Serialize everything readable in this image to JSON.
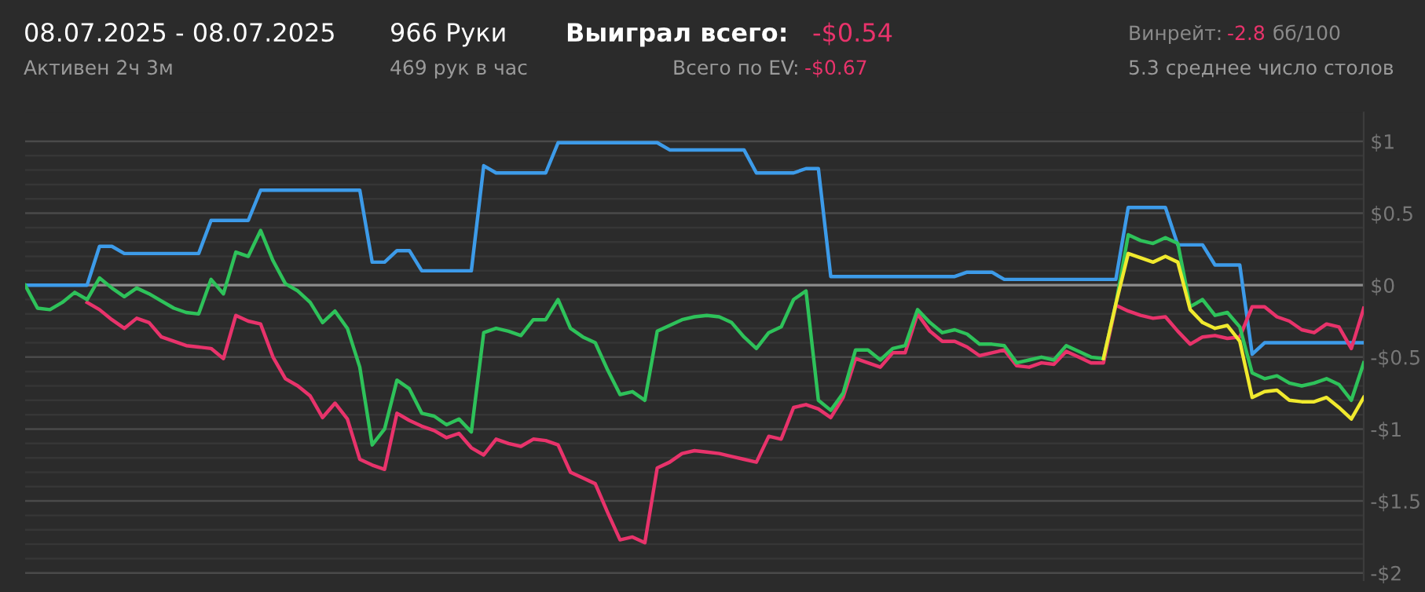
{
  "chart_data": {
    "type": "line",
    "annotations": [
      "08.07.2025 - 08.07.2025",
      "Активен 2ч 3м",
      "966 Руки",
      "469 рук в час",
      "Выиграл всего:",
      "-$0.54",
      "Всего по EV:",
      "-$0.67",
      "Винрейт:",
      "-2.8",
      "бб/100",
      "5.3 среднее число столов"
    ],
    "categories": [
      null,
      null,
      null,
      null,
      null,
      null,
      null,
      null,
      null,
      null,
      null,
      null,
      null,
      null,
      null,
      null,
      null,
      null,
      null,
      null,
      null,
      null,
      null,
      null,
      null,
      null,
      null,
      null,
      null,
      null,
      null,
      null,
      null,
      null,
      null,
      null,
      null,
      null,
      null,
      null,
      null,
      null,
      null,
      null,
      null,
      null,
      null,
      null,
      null,
      null,
      null,
      null,
      null,
      null,
      null,
      null,
      null,
      null,
      null,
      null,
      null,
      null,
      null,
      null,
      null,
      null,
      null,
      null,
      null,
      null,
      null,
      null,
      null,
      null,
      null,
      null,
      null,
      null,
      null,
      null,
      null,
      null,
      null,
      null,
      null,
      null,
      null,
      null,
      null,
      null,
      null,
      null,
      null,
      null,
      null,
      null,
      null,
      null,
      null,
      null,
      null,
      null,
      null,
      null,
      null,
      null,
      null,
      null,
      null
    ],
    "series": [
      {
        "color": "#3d9be9",
        "values": [
          0,
          0,
          0,
          0,
          0,
          0,
          0.27,
          0.27,
          0.22,
          0.22,
          0.22,
          0.22,
          0.22,
          0.22,
          0.22,
          0.45,
          0.45,
          0.45,
          0.45,
          0.66,
          0.66,
          0.66,
          0.66,
          0.66,
          0.66,
          0.66,
          0.66,
          0.66,
          0.16,
          0.16,
          0.24,
          0.24,
          0.1,
          0.1,
          0.1,
          0.1,
          0.1,
          0.83,
          0.78,
          0.78,
          0.78,
          0.78,
          0.78,
          0.99,
          0.99,
          0.99,
          0.99,
          0.99,
          0.99,
          0.99,
          0.99,
          0.99,
          0.94,
          0.94,
          0.94,
          0.94,
          0.94,
          0.94,
          0.94,
          0.78,
          0.78,
          0.78,
          0.78,
          0.81,
          0.81,
          0.06,
          0.06,
          0.06,
          0.06,
          0.06,
          0.06,
          0.06,
          0.06,
          0.06,
          0.06,
          0.06,
          0.09,
          0.09,
          0.09,
          0.04,
          0.04,
          0.04,
          0.04,
          0.04,
          0.04,
          0.04,
          0.04,
          0.04,
          0.04,
          0.54,
          0.54,
          0.54,
          0.54,
          0.28,
          0.28,
          0.28,
          0.14,
          0.14,
          0.14,
          -0.48,
          -0.4,
          -0.4,
          -0.4,
          -0.4,
          -0.4,
          -0.4,
          -0.4,
          -0.4,
          -0.4
        ]
      },
      {
        "color": "#e8336b",
        "values": [
          null,
          null,
          null,
          null,
          null,
          -0.12,
          -0.17,
          -0.24,
          -0.3,
          -0.23,
          -0.26,
          -0.36,
          -0.39,
          -0.42,
          -0.43,
          -0.44,
          -0.51,
          -0.21,
          -0.25,
          -0.27,
          -0.5,
          -0.65,
          -0.7,
          -0.77,
          -0.92,
          -0.82,
          -0.93,
          -1.21,
          -1.25,
          -1.28,
          -0.89,
          -0.94,
          -0.98,
          -1.01,
          -1.06,
          -1.03,
          -1.13,
          -1.18,
          -1.07,
          -1.1,
          -1.12,
          -1.07,
          -1.08,
          -1.11,
          -1.3,
          -1.34,
          -1.38,
          -1.58,
          -1.77,
          -1.75,
          -1.79,
          -1.27,
          -1.23,
          -1.17,
          -1.15,
          -1.16,
          -1.17,
          -1.19,
          -1.21,
          -1.23,
          -1.05,
          -1.07,
          -0.85,
          -0.83,
          -0.86,
          -0.92,
          -0.78,
          -0.51,
          -0.54,
          -0.57,
          -0.47,
          -0.47,
          -0.2,
          -0.32,
          -0.39,
          -0.39,
          -0.43,
          -0.49,
          -0.47,
          -0.45,
          -0.56,
          -0.57,
          -0.54,
          -0.55,
          -0.46,
          -0.5,
          -0.54,
          -0.54,
          -0.14,
          -0.18,
          -0.21,
          -0.23,
          -0.22,
          -0.32,
          -0.41,
          -0.36,
          -0.35,
          -0.37,
          -0.36,
          -0.15,
          -0.15,
          -0.22,
          -0.25,
          -0.31,
          -0.33,
          -0.27,
          -0.29,
          -0.44,
          -0.16
        ]
      },
      {
        "color": "#2ec25a",
        "values": [
          0,
          -0.16,
          -0.17,
          -0.12,
          -0.05,
          -0.1,
          0.05,
          -0.02,
          -0.08,
          -0.02,
          -0.06,
          -0.11,
          -0.16,
          -0.19,
          -0.2,
          0.04,
          -0.06,
          0.23,
          0.2,
          0.38,
          0.17,
          0.01,
          -0.04,
          -0.12,
          -0.26,
          -0.18,
          -0.3,
          -0.57,
          -1.11,
          -1.0,
          -0.66,
          -0.72,
          -0.89,
          -0.91,
          -0.97,
          -0.93,
          -1.02,
          -0.33,
          -0.3,
          -0.32,
          -0.35,
          -0.24,
          -0.24,
          -0.1,
          -0.3,
          -0.36,
          -0.4,
          -0.59,
          -0.76,
          -0.74,
          -0.8,
          -0.32,
          -0.28,
          -0.24,
          -0.22,
          -0.21,
          -0.22,
          -0.26,
          -0.36,
          -0.44,
          -0.33,
          -0.29,
          -0.1,
          -0.04,
          -0.8,
          -0.87,
          -0.75,
          -0.45,
          -0.45,
          -0.52,
          -0.44,
          -0.42,
          -0.17,
          -0.26,
          -0.33,
          -0.31,
          -0.34,
          -0.41,
          -0.41,
          -0.42,
          -0.54,
          -0.52,
          -0.5,
          -0.52,
          -0.42,
          -0.46,
          -0.5,
          -0.51,
          -0.13,
          0.35,
          0.31,
          0.29,
          0.33,
          0.29,
          -0.15,
          -0.1,
          -0.21,
          -0.19,
          -0.29,
          -0.61,
          -0.65,
          -0.63,
          -0.68,
          -0.7,
          -0.68,
          -0.65,
          -0.69,
          -0.8,
          -0.54
        ]
      },
      {
        "color": "#f0e92e",
        "values": [
          null,
          null,
          null,
          null,
          null,
          null,
          null,
          null,
          null,
          null,
          null,
          null,
          null,
          null,
          null,
          null,
          null,
          null,
          null,
          null,
          null,
          null,
          null,
          null,
          null,
          null,
          null,
          null,
          null,
          null,
          null,
          null,
          null,
          null,
          null,
          null,
          null,
          null,
          null,
          null,
          null,
          null,
          null,
          null,
          null,
          null,
          null,
          null,
          null,
          null,
          null,
          null,
          null,
          null,
          null,
          null,
          null,
          null,
          null,
          null,
          null,
          null,
          null,
          null,
          null,
          null,
          null,
          null,
          null,
          null,
          null,
          null,
          null,
          null,
          null,
          null,
          null,
          null,
          null,
          null,
          null,
          null,
          null,
          null,
          null,
          null,
          null,
          -0.51,
          -0.13,
          0.22,
          0.19,
          0.16,
          0.2,
          0.16,
          -0.17,
          -0.26,
          -0.3,
          -0.28,
          -0.39,
          -0.78,
          -0.74,
          -0.73,
          -0.8,
          -0.81,
          -0.81,
          -0.78,
          -0.85,
          -0.93,
          -0.78
        ]
      }
    ],
    "ylim": [
      -2.05,
      1.2
    ],
    "yticks": [
      {
        "value": 1,
        "label": "$1"
      },
      {
        "value": 0.9,
        "label": null
      },
      {
        "value": 0.8,
        "label": null
      },
      {
        "value": 0.7,
        "label": null
      },
      {
        "value": 0.6,
        "label": null
      },
      {
        "value": 0.5,
        "label": "$0.5"
      },
      {
        "value": 0.4,
        "label": null
      },
      {
        "value": 0.3,
        "label": null
      },
      {
        "value": 0.2,
        "label": null
      },
      {
        "value": 0.1,
        "label": null
      },
      {
        "value": 0,
        "label": "$0"
      },
      {
        "value": -0.1,
        "label": null
      },
      {
        "value": -0.2,
        "label": null
      },
      {
        "value": -0.3,
        "label": null
      },
      {
        "value": -0.4,
        "label": null
      },
      {
        "value": -0.5,
        "label": "-$0.5"
      },
      {
        "value": -0.6,
        "label": null
      },
      {
        "value": -0.7,
        "label": null
      },
      {
        "value": -0.8,
        "label": null
      },
      {
        "value": -0.9,
        "label": null
      },
      {
        "value": -1,
        "label": "-$1"
      },
      {
        "value": -1.1,
        "label": null
      },
      {
        "value": -1.2,
        "label": null
      },
      {
        "value": -1.3,
        "label": null
      },
      {
        "value": -1.4,
        "label": null
      },
      {
        "value": -1.5,
        "label": "-$1.5"
      },
      {
        "value": -1.6,
        "label": null
      },
      {
        "value": -1.7,
        "label": null
      },
      {
        "value": -1.8,
        "label": null
      },
      {
        "value": -1.9,
        "label": null
      },
      {
        "value": -2,
        "label": "-$2"
      }
    ],
    "ref_lines": [
      {
        "axis": "y",
        "value": 0,
        "color": "#8c8c8c"
      }
    ],
    "grid": "y",
    "tick_labels": "y",
    "marker": "none",
    "line_style": "solid"
  }
}
